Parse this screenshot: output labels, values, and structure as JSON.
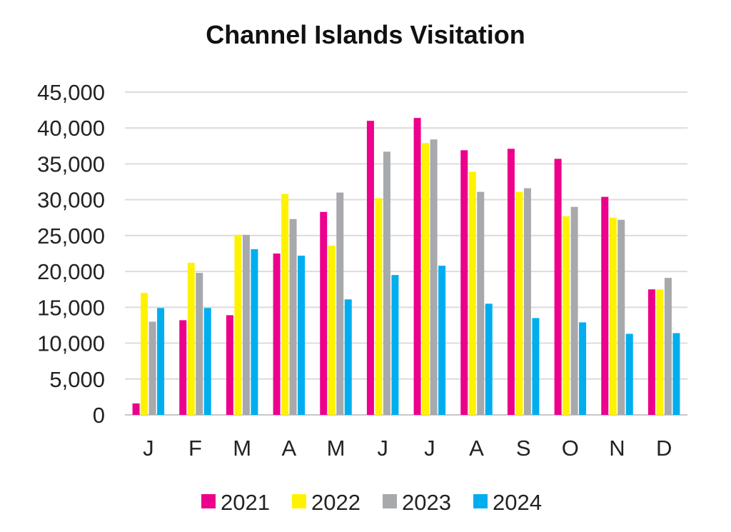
{
  "chart_data": {
    "type": "bar",
    "title": "Channel Islands Visitation",
    "xlabel": "",
    "ylabel": "",
    "categories": [
      "J",
      "F",
      "M",
      "A",
      "M",
      "J",
      "J",
      "A",
      "S",
      "O",
      "N",
      "D"
    ],
    "ylim": [
      0,
      45000
    ],
    "yticks": [
      "0",
      "5,000",
      "10,000",
      "15,000",
      "20,000",
      "25,000",
      "30,000",
      "35,000",
      "40,000",
      "45,000"
    ],
    "ytick_values": [
      0,
      5000,
      10000,
      15000,
      20000,
      25000,
      30000,
      35000,
      40000,
      45000
    ],
    "grid": true,
    "legend_position": "bottom",
    "series": [
      {
        "name": "2021",
        "color": "#ec008c",
        "values": [
          1600,
          13200,
          13900,
          22500,
          28300,
          41000,
          41400,
          36900,
          37100,
          35700,
          30400,
          17500
        ]
      },
      {
        "name": "2022",
        "color": "#fff200",
        "values": [
          17000,
          21200,
          25100,
          30800,
          23600,
          30200,
          37900,
          33900,
          31100,
          27700,
          27500,
          17500
        ]
      },
      {
        "name": "2023",
        "color": "#a7a9ac",
        "values": [
          13000,
          19800,
          25100,
          27300,
          31000,
          36700,
          38400,
          31100,
          31600,
          29000,
          27200,
          19100
        ]
      },
      {
        "name": "2024",
        "color": "#00aeef",
        "values": [
          14900,
          14900,
          23100,
          22200,
          16100,
          19500,
          20800,
          15500,
          13500,
          12900,
          11300,
          11400
        ]
      }
    ]
  }
}
